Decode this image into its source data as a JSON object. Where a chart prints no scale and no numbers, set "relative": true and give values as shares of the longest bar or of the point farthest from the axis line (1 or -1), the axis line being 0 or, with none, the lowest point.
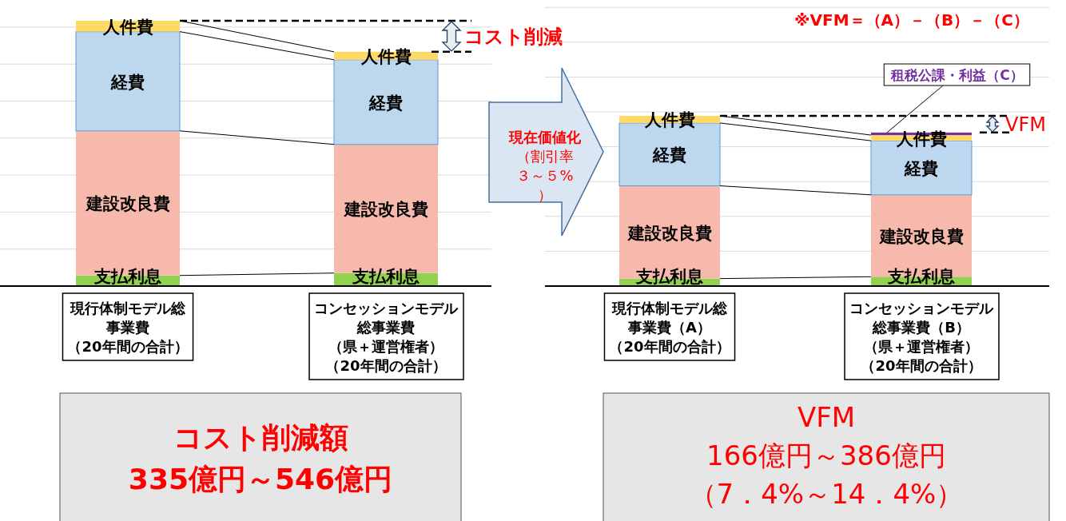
{
  "chart_data": [
    {
      "type": "bar",
      "stacked": true,
      "relative": true,
      "grid": "y",
      "categories": [
        "現行体制モデル総事業費（20年間の合計）",
        "コンセッションモデル総事業費（県＋運営権者）（20年間の合計）"
      ],
      "series": [
        {
          "name": "支払利息",
          "color": "#92d050",
          "values": [
            0.04,
            0.049
          ]
        },
        {
          "name": "建設改良費",
          "color": "#f8b9ad",
          "values": [
            0.545,
            0.485
          ]
        },
        {
          "name": "経費",
          "color": "#bdd7ee",
          "values": [
            0.374,
            0.319
          ]
        },
        {
          "name": "人件費",
          "color": "#ffd966",
          "values": [
            0.041,
            0.03
          ]
        }
      ],
      "annotations": [
        "コスト削減",
        "コスト削減額",
        "335億円～546億円"
      ]
    },
    {
      "type": "bar",
      "stacked": true,
      "relative": true,
      "grid": "y",
      "categories": [
        "現行体制モデル総事業費（A）（20年間の合計）",
        "コンセッションモデル総事業費（B）（県＋運営権者）（20年間の合計）"
      ],
      "series": [
        {
          "name": "支払利息",
          "color": "#92d050",
          "values": [
            0.044,
            0.055
          ]
        },
        {
          "name": "建設改良費",
          "color": "#f8b9ad",
          "values": [
            0.545,
            0.481
          ]
        },
        {
          "name": "経費",
          "color": "#bdd7ee",
          "values": [
            0.369,
            0.318
          ]
        },
        {
          "name": "人件費",
          "color": "#ffd966",
          "values": [
            0.042,
            0.033
          ]
        },
        {
          "name": "租税公課・利益（C）",
          "color": "#7030a0",
          "values": [
            null,
            0.015
          ]
        }
      ],
      "annotations": [
        "※VFM＝（A）－（B）－（C）",
        "VFM",
        "現在価値化",
        "（割引率３～５%）",
        "VFM",
        "166億円～386億円",
        "（7．4%～14．4%）"
      ]
    }
  ]
}
